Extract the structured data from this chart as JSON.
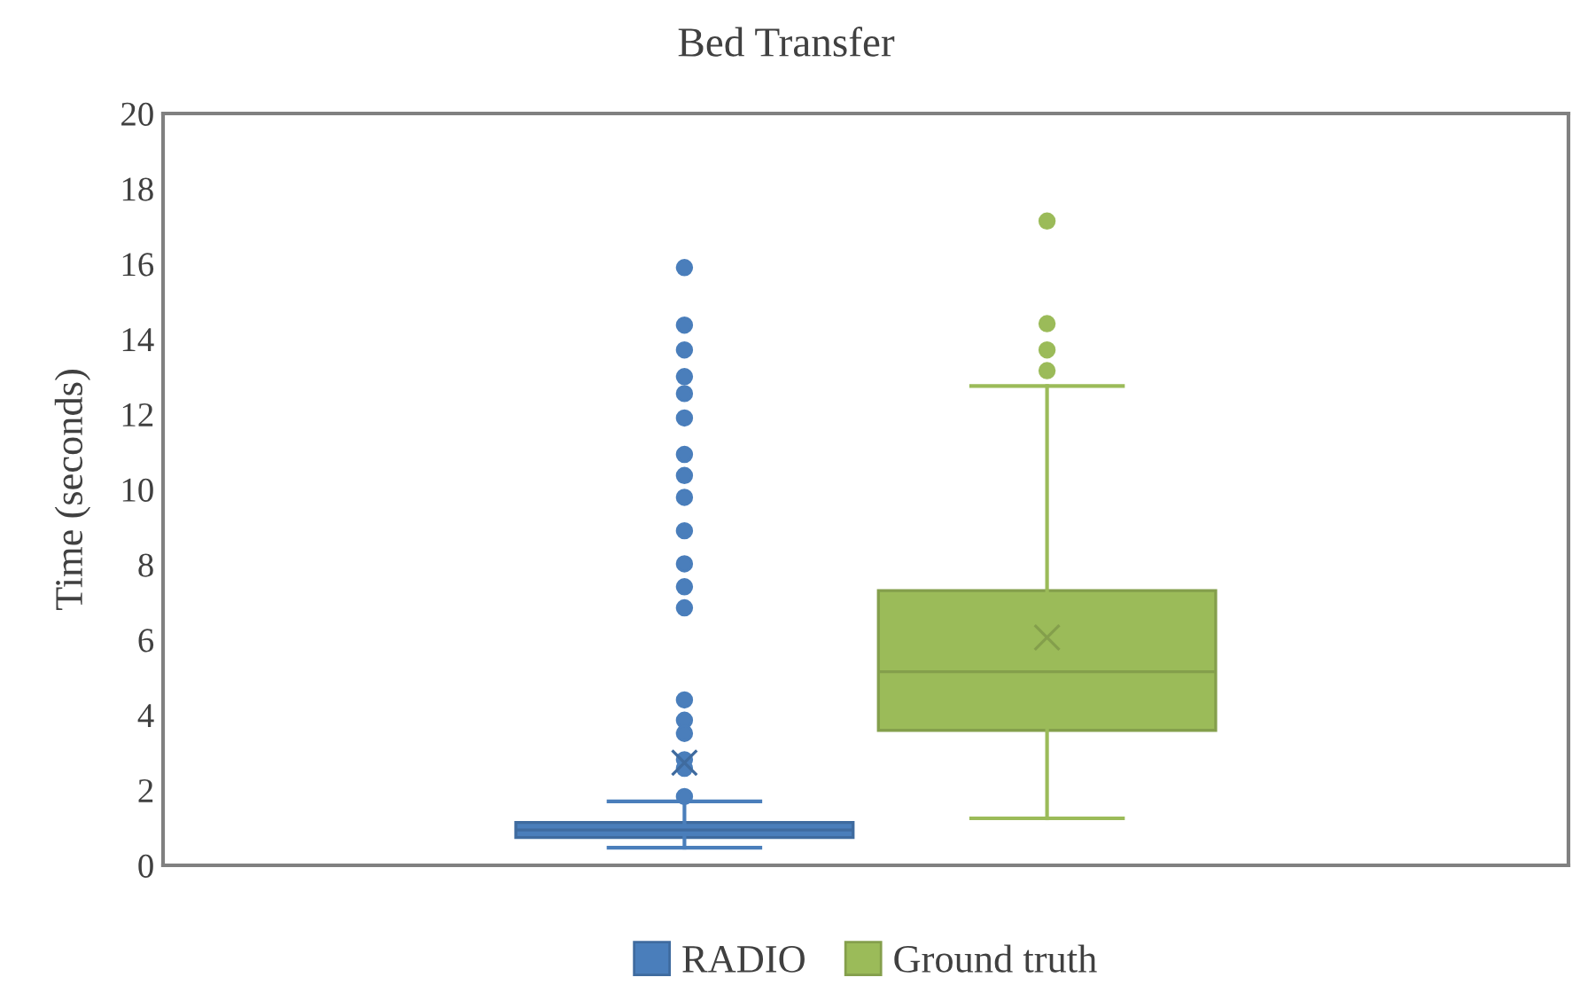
{
  "chart_data": {
    "type": "box",
    "title": "Bed Transfer",
    "ylabel": "Time (seconds)",
    "categories": [
      null
    ],
    "series": [
      {
        "name": "RADIO",
        "color": "#4a7ebb",
        "boxes": [
          {
            "low": 0.47,
            "q1": 0.74,
            "median": 0.94,
            "q3": 1.14,
            "high": 1.7,
            "mean": 2.73,
            "outliers": [
              15.9,
              14.37,
              13.71,
              13.0,
              12.55,
              11.9,
              10.93,
              10.37,
              9.79,
              8.9,
              8.02,
              7.41,
              6.85,
              4.4,
              3.86,
              3.51,
              2.81,
              2.58,
              1.83
            ]
          }
        ]
      },
      {
        "name": "Ground truth",
        "color": "#9bbb59",
        "boxes": [
          {
            "low": 1.25,
            "q1": 3.59,
            "median": 5.15,
            "q3": 7.31,
            "high": 12.75,
            "mean": 6.06,
            "outliers": [
              17.14,
              14.41,
              13.71,
              13.16
            ]
          }
        ]
      }
    ],
    "ylim": [
      0,
      20
    ],
    "yticks": [
      0,
      2,
      4,
      6,
      8,
      10,
      12,
      14,
      16,
      18,
      20
    ],
    "grid": false,
    "legend": "bottom"
  }
}
